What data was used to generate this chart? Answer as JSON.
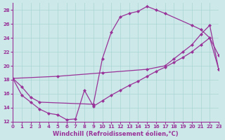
{
  "xlabel": "Windchill (Refroidissement éolien,°C)",
  "background_color": "#cce8e8",
  "line_color": "#993399",
  "grid_color": "#aad4d4",
  "xmin": 0,
  "xmax": 23,
  "ymin": 12,
  "ymax": 29,
  "xticks": [
    0,
    1,
    2,
    3,
    4,
    5,
    6,
    7,
    8,
    9,
    10,
    11,
    12,
    13,
    14,
    15,
    16,
    17,
    18,
    19,
    20,
    21,
    22,
    23
  ],
  "yticks": [
    12,
    14,
    16,
    18,
    20,
    22,
    24,
    26,
    28
  ],
  "curve_upper_x": [
    0,
    1,
    2,
    3,
    9,
    10,
    11,
    12,
    13,
    14,
    15,
    16,
    17,
    20,
    21,
    22,
    23
  ],
  "curve_upper_y": [
    18.2,
    17.0,
    15.5,
    14.8,
    14.5,
    21.0,
    24.8,
    27.0,
    27.5,
    27.8,
    28.5,
    28.0,
    27.5,
    25.8,
    25.2,
    24.0,
    21.5
  ],
  "curve_mid_x": [
    0,
    5,
    10,
    15,
    17,
    18,
    19,
    20,
    21,
    22,
    23
  ],
  "curve_mid_y": [
    18.2,
    18.5,
    19.0,
    19.5,
    20.0,
    21.0,
    22.0,
    23.0,
    24.5,
    25.8,
    19.5
  ],
  "curve_lower_x": [
    0,
    1,
    2,
    3,
    4,
    5,
    6,
    7,
    8,
    9,
    10,
    11,
    12,
    13,
    14,
    15,
    16,
    17,
    18,
    19,
    20,
    21,
    22,
    23
  ],
  "curve_lower_y": [
    18.2,
    15.8,
    14.8,
    13.8,
    13.2,
    13.0,
    12.3,
    12.4,
    16.5,
    14.2,
    15.0,
    15.8,
    16.5,
    17.2,
    17.8,
    18.5,
    19.2,
    19.8,
    20.5,
    21.2,
    22.0,
    23.0,
    24.0,
    19.5
  ]
}
